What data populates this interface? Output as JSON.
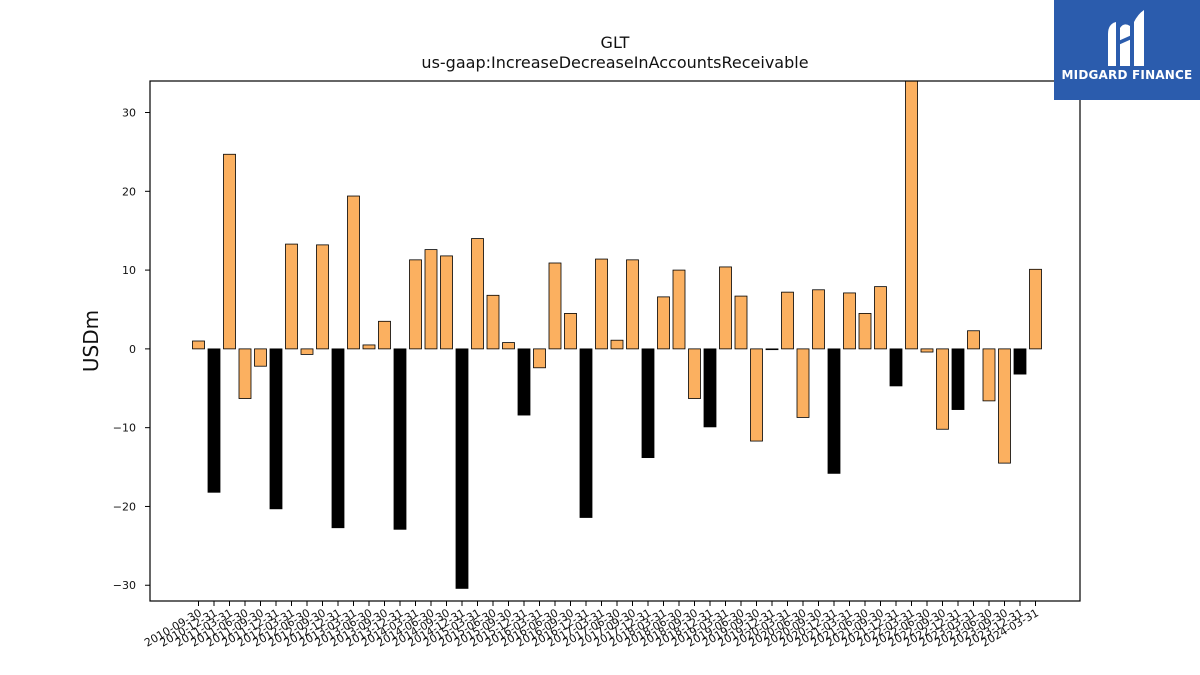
{
  "chart_data": {
    "type": "bar",
    "title": "GLT",
    "subtitle": "us-gaap:IncreaseDecreaseInAccountsReceivable",
    "ylabel": "USDm",
    "xlabel": "",
    "ylim": [
      -32,
      34
    ],
    "yticks": [
      -30,
      -20,
      -10,
      0,
      10,
      20,
      30
    ],
    "ytick_labels": [
      "−30",
      "−20",
      "−10",
      "0",
      "10",
      "20",
      "30"
    ],
    "colors": {
      "positive_period": "#fbb060",
      "q4_period": "#000000",
      "edge": "#000000"
    },
    "categories": [
      "2010-09-30",
      "2010-12-31",
      "2011-03-31",
      "2011-06-30",
      "2011-09-30",
      "2011-12-31",
      "2012-03-31",
      "2012-06-30",
      "2012-09-30",
      "2012-12-31",
      "2013-03-31",
      "2013-06-30",
      "2013-09-30",
      "2013-12-31",
      "2014-03-31",
      "2014-06-30",
      "2014-09-30",
      "2014-12-31",
      "2015-03-31",
      "2015-06-30",
      "2015-09-30",
      "2015-12-31",
      "2016-03-31",
      "2016-06-30",
      "2016-09-30",
      "2016-12-31",
      "2017-03-31",
      "2017-06-30",
      "2017-09-30",
      "2017-12-31",
      "2018-03-31",
      "2018-06-30",
      "2018-09-30",
      "2018-12-31",
      "2019-03-31",
      "2019-06-30",
      "2019-09-30",
      "2019-12-31",
      "2020-03-31",
      "2020-06-30",
      "2020-09-30",
      "2020-12-31",
      "2021-03-31",
      "2021-06-30",
      "2021-09-30",
      "2021-12-31",
      "2022-03-31",
      "2022-06-30",
      "2022-09-30",
      "2022-12-31",
      "2023-03-31",
      "2023-06-30",
      "2023-09-30",
      "2023-12-31",
      "2024-03-31"
    ],
    "values": [
      1.0,
      -18.2,
      24.7,
      -6.3,
      -2.2,
      -20.3,
      13.3,
      -0.7,
      13.2,
      -22.7,
      19.4,
      0.5,
      3.5,
      -22.9,
      11.3,
      12.6,
      11.8,
      -30.4,
      14.0,
      6.8,
      0.8,
      -8.4,
      -2.4,
      10.9,
      4.5,
      -21.4,
      11.4,
      1.1,
      11.3,
      -13.8,
      6.6,
      10.0,
      -6.3,
      -9.9,
      10.4,
      6.7,
      -11.7,
      -0.1,
      7.2,
      -8.7,
      7.5,
      -15.8,
      7.1,
      4.5,
      7.9,
      -4.7,
      34.5,
      -0.4,
      -10.2,
      -7.7,
      2.3,
      -6.6,
      -14.5,
      -3.2,
      10.1
    ],
    "grid": false,
    "legend": "none"
  },
  "logo": {
    "text": "MIDGARD FINANCE",
    "icon": "midgard-logo-icon"
  }
}
